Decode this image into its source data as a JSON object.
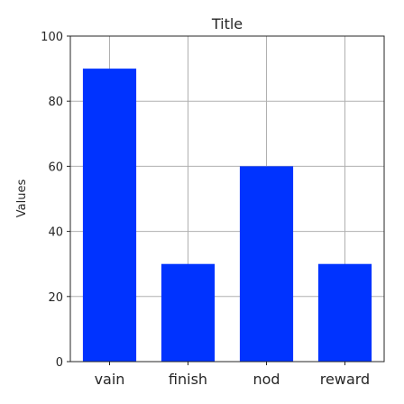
{
  "chart_data": {
    "type": "bar",
    "title": "Title",
    "xlabel": "",
    "ylabel": "Values",
    "categories": [
      "vain",
      "finish",
      "nod",
      "reward"
    ],
    "values": [
      90,
      30,
      60,
      30
    ],
    "ylim": [
      0,
      100
    ],
    "yticks": [
      0,
      20,
      40,
      60,
      80,
      100
    ],
    "grid": true,
    "bar_color": "#0033ff"
  }
}
